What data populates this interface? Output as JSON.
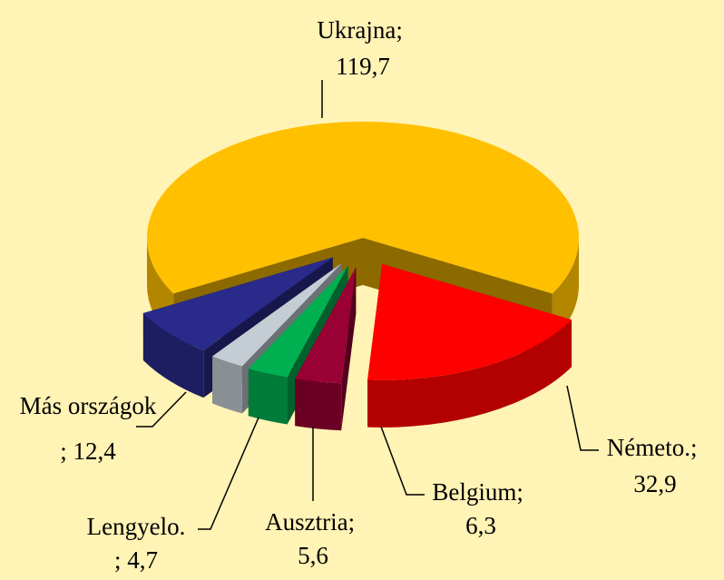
{
  "chart_data": {
    "type": "pie3d",
    "categories": [
      "Ukrajna",
      "Németo.",
      "Belgium",
      "Ausztria",
      "Lengyelo.",
      "Más országok"
    ],
    "values": [
      119.7,
      32.9,
      6.3,
      5.6,
      4.7,
      12.4
    ],
    "value_labels": [
      "119,7",
      "32,9",
      "6,3",
      "5,6",
      "4,7",
      "12,4"
    ],
    "separator": "; ",
    "colors": [
      "#FFC000",
      "#FF0000",
      "#990033",
      "#00B050",
      "#C3CDD3",
      "#2A2A8A"
    ]
  }
}
